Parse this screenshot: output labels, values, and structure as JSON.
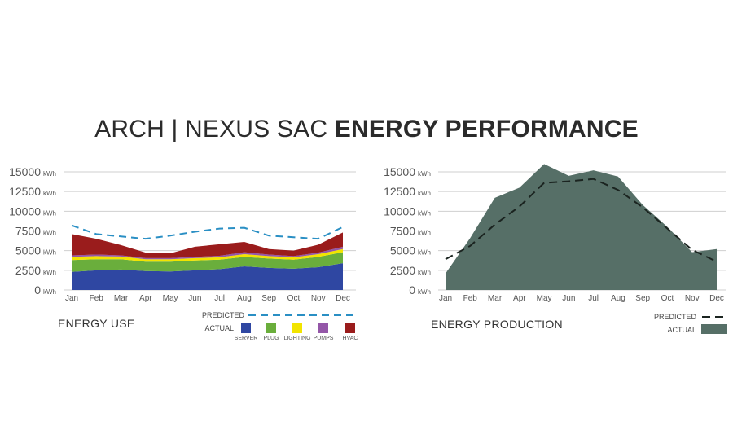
{
  "title": {
    "normal": "ARCH | NEXUS SAC",
    "bold": "ENERGY PERFORMANCE"
  },
  "colors": {
    "server": "#2f47a2",
    "plug": "#6aae3c",
    "lighting": "#f2e400",
    "pumps": "#9457a8",
    "hvac": "#9a1c1c",
    "predicted_use": "#2a8fc4",
    "production": "#566f67",
    "predicted_production": "#1b2420",
    "grid": "#cfcfcf"
  },
  "chart_data": [
    {
      "type": "area",
      "title": "ENERGY USE",
      "unit": "kWh",
      "x": [
        "Jan",
        "Feb",
        "Mar",
        "Apr",
        "May",
        "Jun",
        "Jul",
        "Aug",
        "Sep",
        "Oct",
        "Nov",
        "Dec"
      ],
      "yticks": [
        0,
        2500,
        5000,
        7500,
        10000,
        12500,
        15000
      ],
      "ylim": [
        0,
        15000
      ],
      "stacked": true,
      "series": [
        {
          "name": "SERVER",
          "values": [
            2300,
            2500,
            2600,
            2400,
            2350,
            2500,
            2650,
            3000,
            2800,
            2700,
            2900,
            3400
          ]
        },
        {
          "name": "PLUG",
          "values": [
            1500,
            1400,
            1300,
            1200,
            1250,
            1250,
            1200,
            1200,
            1200,
            1150,
            1300,
            1400
          ]
        },
        {
          "name": "LIGHTING",
          "values": [
            400,
            400,
            350,
            300,
            300,
            300,
            300,
            350,
            300,
            300,
            350,
            400
          ]
        },
        {
          "name": "PUMPS",
          "values": [
            200,
            200,
            150,
            150,
            150,
            150,
            200,
            250,
            200,
            150,
            200,
            300
          ]
        },
        {
          "name": "HVAC",
          "values": [
            2700,
            2000,
            1300,
            700,
            600,
            1300,
            1450,
            1300,
            700,
            700,
            1000,
            1800
          ]
        }
      ],
      "predicted": {
        "name": "PREDICTED",
        "values": [
          8200,
          7100,
          6800,
          6500,
          6900,
          7400,
          7800,
          7900,
          6900,
          6700,
          6500,
          8000
        ]
      },
      "legend": {
        "predicted_label": "PREDICTED",
        "actual_label": "ACTUAL"
      }
    },
    {
      "type": "area",
      "title": "ENERGY PRODUCTION",
      "unit": "kWh",
      "x": [
        "Jan",
        "Feb",
        "Mar",
        "Apr",
        "May",
        "Jun",
        "Jul",
        "Aug",
        "Sep",
        "Oct",
        "Nov",
        "Dec"
      ],
      "yticks": [
        0,
        2500,
        5000,
        7500,
        10000,
        12500,
        15000
      ],
      "ylim": [
        0,
        15000
      ],
      "series": [
        {
          "name": "ACTUAL",
          "values": [
            2100,
            6600,
            11700,
            13000,
            16000,
            14500,
            15200,
            14400,
            10800,
            8000,
            4800,
            5200
          ]
        }
      ],
      "predicted": {
        "name": "PREDICTED",
        "values": [
          3900,
          5600,
          8300,
          10600,
          13600,
          13800,
          14100,
          12700,
          10500,
          7800,
          5100,
          3600
        ]
      },
      "legend": {
        "predicted_label": "PREDICTED",
        "actual_label": "ACTUAL"
      }
    }
  ]
}
